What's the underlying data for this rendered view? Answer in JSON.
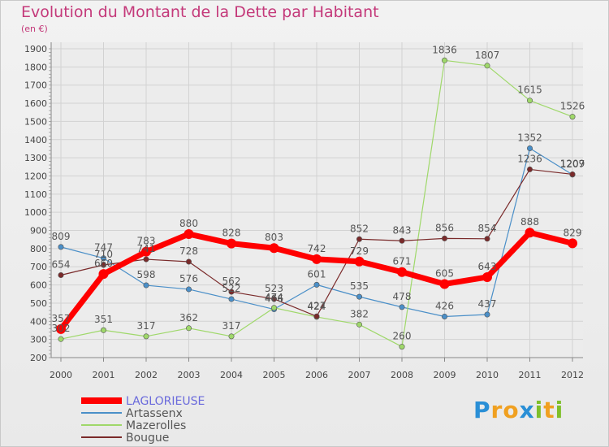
{
  "title": "Evolution du Montant de la Dette par Habitant",
  "subtitle": "(en €)",
  "logo": {
    "letters": [
      "P",
      "r",
      "o",
      "x",
      "i",
      "t",
      "i"
    ],
    "colors": [
      "#2a8fd6",
      "#f0a020",
      "#f0a020",
      "#2a8fd6",
      "#7fbf2a",
      "#f0a020",
      "#7fbf2a"
    ]
  },
  "chart_data": {
    "type": "line",
    "x": [
      "2000",
      "2001",
      "2002",
      "2003",
      "2004",
      "2005",
      "2006",
      "2007",
      "2008",
      "2009",
      "2010",
      "2011",
      "2012"
    ],
    "y_ticks": [
      "200",
      "300",
      "400",
      "500",
      "600",
      "700",
      "800",
      "900",
      "1000",
      "1100",
      "1200",
      "1300",
      "1400",
      "1500",
      "1600",
      "1700",
      "1800",
      "1900"
    ],
    "ylim": [
      200,
      1900
    ],
    "grid": true,
    "legend_position": "bottom-left",
    "series": [
      {
        "name": "Artassenx",
        "color": "#4a8fc8",
        "width": 1.2,
        "values": [
          809,
          747,
          598,
          576,
          522,
          466,
          601,
          535,
          478,
          426,
          437,
          1352,
          1207
        ],
        "labels": [
          "809",
          "747",
          "598",
          "576",
          "522",
          "466",
          "601",
          "535",
          "478",
          "426",
          "437",
          "1352",
          "1207"
        ]
      },
      {
        "name": "Mazerolles",
        "color": "#9fd86a",
        "width": 1.2,
        "values": [
          302,
          351,
          317,
          362,
          317,
          474,
          424,
          382,
          260,
          1836,
          1807,
          1615,
          1526
        ],
        "labels": [
          "302",
          "351",
          "317",
          "362",
          "317",
          "474",
          "424",
          "382",
          "260",
          "1836",
          "1807",
          "1615",
          "1526"
        ]
      },
      {
        "name": "Bougue",
        "color": "#7a2a2a",
        "width": 1.2,
        "values": [
          654,
          710,
          741,
          728,
          562,
          523,
          427,
          852,
          843,
          856,
          854,
          1236,
          1209
        ],
        "labels": [
          "654",
          "710",
          "741",
          "728",
          "562",
          "523",
          "427",
          "852",
          "843",
          "856",
          "854",
          "1236",
          "1209"
        ]
      },
      {
        "name": "LAGLORIEUSE",
        "color": "#ff0000",
        "width": 7,
        "values": [
          357,
          660,
          783,
          880,
          828,
          803,
          742,
          729,
          671,
          605,
          643,
          888,
          829
        ],
        "labels": [
          "357",
          "660",
          "783",
          "880",
          "828",
          "803",
          "742",
          "729",
          "671",
          "605",
          "643",
          "888",
          "829"
        ]
      }
    ],
    "legend_order": [
      "LAGLORIEUSE",
      "Artassenx",
      "Mazerolles",
      "Bougue"
    ]
  }
}
